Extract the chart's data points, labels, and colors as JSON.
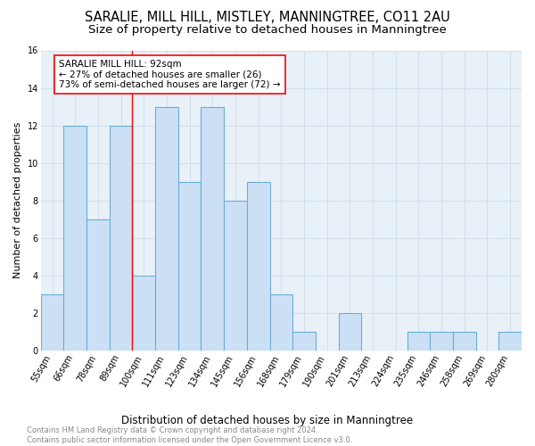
{
  "title": "SARALIE, MILL HILL, MISTLEY, MANNINGTREE, CO11 2AU",
  "subtitle": "Size of property relative to detached houses in Manningtree",
  "xlabel": "Distribution of detached houses by size in Manningtree",
  "ylabel": "Number of detached properties",
  "categories": [
    "55sqm",
    "66sqm",
    "78sqm",
    "89sqm",
    "100sqm",
    "111sqm",
    "123sqm",
    "134sqm",
    "145sqm",
    "156sqm",
    "168sqm",
    "179sqm",
    "190sqm",
    "201sqm",
    "213sqm",
    "224sqm",
    "235sqm",
    "246sqm",
    "258sqm",
    "269sqm",
    "280sqm"
  ],
  "values": [
    3,
    12,
    7,
    12,
    4,
    13,
    9,
    13,
    8,
    9,
    3,
    1,
    0,
    2,
    0,
    0,
    1,
    1,
    1,
    0,
    1
  ],
  "bar_color": "#cce0f5",
  "bar_edge_color": "#6aaed6",
  "bar_linewidth": 0.8,
  "red_line_index": 3.5,
  "annotation_line1": "SARALIE MILL HILL: 92sqm",
  "annotation_line2": "← 27% of detached houses are smaller (26)",
  "annotation_line3": "73% of semi-detached houses are larger (72) →",
  "ylim": [
    0,
    16
  ],
  "yticks": [
    0,
    2,
    4,
    6,
    8,
    10,
    12,
    14,
    16
  ],
  "grid_color": "#d0dce8",
  "bg_color": "#e8f0f8",
  "fig_color": "white",
  "title_fontsize": 10.5,
  "subtitle_fontsize": 9.5,
  "xlabel_fontsize": 8.5,
  "ylabel_fontsize": 8,
  "tick_fontsize": 7,
  "annotation_fontsize": 7.5,
  "footer_fontsize": 6
}
